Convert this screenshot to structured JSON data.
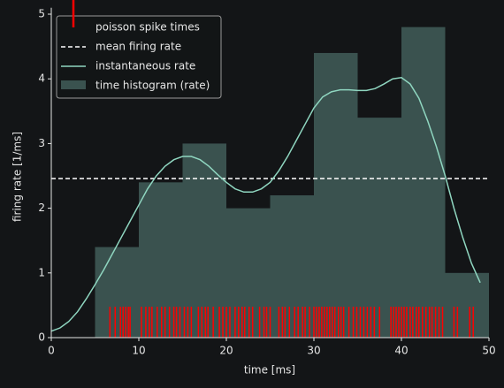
{
  "chart_data": {
    "type": "spike_histogram",
    "xlabel": "time [ms]",
    "ylabel": "firing rate [1/ms]",
    "xlim": [
      0,
      50
    ],
    "xticks": [
      0,
      10,
      20,
      30,
      40,
      50
    ],
    "ylim": [
      0,
      5.1
    ],
    "yticks": [
      0,
      1,
      2,
      3,
      4,
      5
    ],
    "legend_position": "upper left",
    "histogram": {
      "name": "time histogram (rate)",
      "color": "#3a524f",
      "bins": [
        0,
        5,
        10,
        15,
        20,
        25,
        30,
        35,
        40,
        45,
        50
      ],
      "values": [
        0,
        1.4,
        2.4,
        3.0,
        2.0,
        2.2,
        4.4,
        3.4,
        4.8,
        1.0
      ]
    },
    "mean_rate": {
      "name": "mean firing rate",
      "color": "#ffffff",
      "value": 2.46
    },
    "rate": {
      "name": "instantaneous rate",
      "color": "#8fd6c0",
      "x": [
        0,
        1,
        2,
        3,
        4,
        5,
        6,
        7,
        8,
        9,
        10,
        11,
        12,
        13,
        14,
        15,
        16,
        17,
        18,
        19,
        20,
        21,
        22,
        23,
        24,
        25,
        26,
        27,
        28,
        29,
        30,
        31,
        32,
        33,
        34,
        35,
        36,
        37,
        38,
        39,
        40,
        41,
        42,
        43,
        44,
        45,
        46,
        47,
        48,
        49
      ],
      "values": [
        0.1,
        0.15,
        0.25,
        0.4,
        0.6,
        0.82,
        1.05,
        1.3,
        1.55,
        1.8,
        2.05,
        2.3,
        2.5,
        2.65,
        2.75,
        2.8,
        2.8,
        2.75,
        2.65,
        2.52,
        2.4,
        2.3,
        2.25,
        2.25,
        2.3,
        2.4,
        2.58,
        2.8,
        3.05,
        3.3,
        3.55,
        3.72,
        3.8,
        3.83,
        3.83,
        3.82,
        3.82,
        3.85,
        3.92,
        4.0,
        4.02,
        3.92,
        3.7,
        3.35,
        2.95,
        2.5,
        2.0,
        1.55,
        1.15,
        0.85
      ]
    },
    "spikes": {
      "name": "poisson spike times",
      "color": "#ff0000",
      "values": [
        6.7,
        7.3,
        7.9,
        8.2,
        8.5,
        8.8,
        9.0,
        10.3,
        10.8,
        11.2,
        11.5,
        12.1,
        12.6,
        13.0,
        13.5,
        14.0,
        14.3,
        14.7,
        15.2,
        15.6,
        16.0,
        16.8,
        17.2,
        17.6,
        17.9,
        18.5,
        19.2,
        19.6,
        20.0,
        20.4,
        21.0,
        21.4,
        21.8,
        22.1,
        22.6,
        23.0,
        23.8,
        24.3,
        24.6,
        25.0,
        26.0,
        26.4,
        26.7,
        27.2,
        27.8,
        28.2,
        28.7,
        29.0,
        29.5,
        30.0,
        30.3,
        30.6,
        30.9,
        31.2,
        31.5,
        31.8,
        32.1,
        32.4,
        32.8,
        33.1,
        33.4,
        34.0,
        34.5,
        34.9,
        35.3,
        35.7,
        36.1,
        36.5,
        36.9,
        37.5,
        38.8,
        39.1,
        39.4,
        39.7,
        40.0,
        40.3,
        40.6,
        41.0,
        41.3,
        41.7,
        42.0,
        42.4,
        42.8,
        43.2,
        43.5,
        43.9,
        44.3,
        44.7,
        46.0,
        46.4,
        47.8,
        48.2
      ]
    }
  }
}
